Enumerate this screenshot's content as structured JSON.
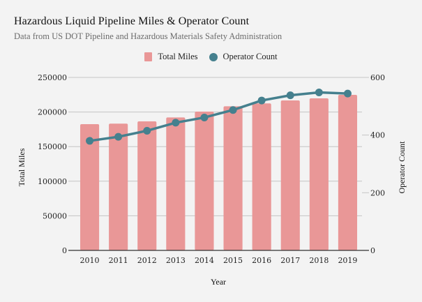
{
  "chart_data": {
    "type": "bar+line",
    "title": "Hazardous Liquid Pipeline Miles & Operator Count",
    "subtitle": "Data from US DOT Pipeline and Hazardous Materials Safety Administration",
    "xlabel": "Year",
    "ylabel_left": "Total Miles",
    "ylabel_right": "Operator Count",
    "categories": [
      "2010",
      "2011",
      "2012",
      "2013",
      "2014",
      "2015",
      "2016",
      "2017",
      "2018",
      "2019"
    ],
    "series": [
      {
        "name": "Total Miles",
        "type": "bar",
        "axis": "left",
        "color": "#e99797",
        "values": [
          182500,
          183200,
          186500,
          192200,
          200600,
          208300,
          212400,
          216700,
          219700,
          224800
        ]
      },
      {
        "name": "Operator Count",
        "type": "line",
        "axis": "right",
        "color": "#45808e",
        "values": [
          380,
          394,
          415,
          443,
          461,
          487,
          520,
          538,
          548,
          544
        ]
      }
    ],
    "ylim_left": [
      0,
      250000
    ],
    "yticks_left": [
      "0",
      "50000",
      "100000",
      "150000",
      "200000",
      "250000"
    ],
    "ylim_right": [
      0,
      600
    ],
    "yticks_right": [
      "0",
      "200",
      "400",
      "600"
    ],
    "grid": true,
    "legend": "top-center"
  },
  "legend": {
    "items": [
      {
        "label": "Total Miles"
      },
      {
        "label": "Operator Count"
      }
    ]
  }
}
